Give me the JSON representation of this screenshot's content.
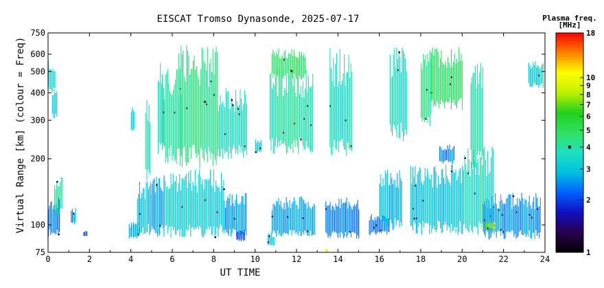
{
  "chart_data": {
    "type": "heatmap",
    "title": "EISCAT Tromso Dynasonde, 2025-07-17",
    "xlabel": "UT TIME",
    "ylabel": "Virtual Range [km] (colour = Freq)",
    "xlim": [
      0,
      24
    ],
    "ylim": [
      75,
      750
    ],
    "y_scale": "log",
    "x_ticks": [
      0,
      2,
      4,
      6,
      8,
      10,
      12,
      14,
      16,
      18,
      20,
      22,
      24
    ],
    "y_ticks": [
      75,
      100,
      200,
      300,
      400,
      500,
      600,
      750
    ],
    "grid": false,
    "colorbar": {
      "title_line1": "Plasma freq.",
      "title_line2": "[MHz]",
      "scale": "log",
      "range": [
        1,
        18
      ],
      "ticks": [
        1,
        2,
        3,
        4,
        5,
        6,
        7,
        8,
        9,
        10,
        18
      ],
      "marker_value": 4,
      "colors": [
        "#000000",
        "#2a0050",
        "#1010c0",
        "#0060ff",
        "#00c0e0",
        "#20e0c0",
        "#30e060",
        "#20d020",
        "#c0f000",
        "#ffff00",
        "#ff8000",
        "#ff0000"
      ]
    },
    "traces": [
      {
        "x0": 0.0,
        "x1": 0.35,
        "ylo": 400,
        "yhi": 560,
        "f": 3.4
      },
      {
        "x0": 0.2,
        "x1": 0.45,
        "ylo": 300,
        "yhi": 440,
        "f": 3.2
      },
      {
        "x0": 0.0,
        "x1": 0.55,
        "ylo": 88,
        "yhi": 135,
        "f": 2.4
      },
      {
        "x0": 0.3,
        "x1": 0.7,
        "ylo": 110,
        "yhi": 165,
        "f": 4.0
      },
      {
        "x0": 1.1,
        "x1": 1.35,
        "ylo": 100,
        "yhi": 120,
        "f": 2.6
      },
      {
        "x0": 1.7,
        "x1": 1.9,
        "ylo": 88,
        "yhi": 95,
        "f": 2.0
      },
      {
        "x0": 3.9,
        "x1": 4.4,
        "ylo": 86,
        "yhi": 104,
        "f": 2.8
      },
      {
        "x0": 4.3,
        "x1": 5.0,
        "ylo": 90,
        "yhi": 160,
        "f": 3.0
      },
      {
        "x0": 4.0,
        "x1": 4.2,
        "ylo": 260,
        "yhi": 360,
        "f": 3.0
      },
      {
        "x0": 4.7,
        "x1": 4.95,
        "ylo": 150,
        "yhi": 380,
        "f": 3.6
      },
      {
        "x0": 5.0,
        "x1": 5.6,
        "ylo": 88,
        "yhi": 170,
        "f": 2.6
      },
      {
        "x0": 5.3,
        "x1": 5.6,
        "ylo": 200,
        "yhi": 560,
        "f": 3.8
      },
      {
        "x0": 5.5,
        "x1": 6.5,
        "ylo": 190,
        "yhi": 520,
        "f": 4.2
      },
      {
        "x0": 5.6,
        "x1": 8.5,
        "ylo": 87,
        "yhi": 180,
        "f": 3.2
      },
      {
        "x0": 6.3,
        "x1": 8.2,
        "ylo": 180,
        "yhi": 660,
        "f": 4.3
      },
      {
        "x0": 8.2,
        "x1": 9.6,
        "ylo": 200,
        "yhi": 420,
        "f": 3.6
      },
      {
        "x0": 8.5,
        "x1": 9.6,
        "ylo": 88,
        "yhi": 140,
        "f": 2.6
      },
      {
        "x0": 9.1,
        "x1": 9.5,
        "ylo": 84,
        "yhi": 95,
        "f": 2.0
      },
      {
        "x0": 10.0,
        "x1": 10.3,
        "ylo": 210,
        "yhi": 250,
        "f": 3.0
      },
      {
        "x0": 10.6,
        "x1": 10.95,
        "ylo": 80,
        "yhi": 92,
        "f": 3.0
      },
      {
        "x0": 10.8,
        "x1": 12.9,
        "ylo": 88,
        "yhi": 135,
        "f": 2.6
      },
      {
        "x0": 10.7,
        "x1": 12.8,
        "ylo": 210,
        "yhi": 520,
        "f": 4.0
      },
      {
        "x0": 10.8,
        "x1": 12.4,
        "ylo": 460,
        "yhi": 640,
        "f": 4.8
      },
      {
        "x0": 13.4,
        "x1": 15.0,
        "ylo": 86,
        "yhi": 135,
        "f": 2.4
      },
      {
        "x0": 13.6,
        "x1": 14.7,
        "ylo": 200,
        "yhi": 640,
        "f": 3.6
      },
      {
        "x0": 15.5,
        "x1": 16.5,
        "ylo": 90,
        "yhi": 112,
        "f": 2.4
      },
      {
        "x0": 16.0,
        "x1": 17.1,
        "ylo": 95,
        "yhi": 180,
        "f": 2.8
      },
      {
        "x0": 16.5,
        "x1": 17.3,
        "ylo": 240,
        "yhi": 660,
        "f": 3.6
      },
      {
        "x0": 17.5,
        "x1": 20.0,
        "ylo": 90,
        "yhi": 190,
        "f": 3.0
      },
      {
        "x0": 18.0,
        "x1": 18.5,
        "ylo": 280,
        "yhi": 650,
        "f": 4.2
      },
      {
        "x0": 18.5,
        "x1": 20.0,
        "ylo": 330,
        "yhi": 650,
        "f": 4.8
      },
      {
        "x0": 18.9,
        "x1": 19.6,
        "ylo": 190,
        "yhi": 235,
        "f": 2.4
      },
      {
        "x0": 20.0,
        "x1": 21.5,
        "ylo": 90,
        "yhi": 230,
        "f": 3.6
      },
      {
        "x0": 20.4,
        "x1": 21.0,
        "ylo": 180,
        "yhi": 560,
        "f": 3.8
      },
      {
        "x0": 21.0,
        "x1": 23.8,
        "ylo": 86,
        "yhi": 140,
        "f": 2.6
      },
      {
        "x0": 23.2,
        "x1": 23.9,
        "ylo": 420,
        "yhi": 560,
        "f": 3.2
      },
      {
        "x0": 13.4,
        "x1": 13.5,
        "ylo": 75,
        "yhi": 78,
        "f": 9.0
      },
      {
        "x0": 21.1,
        "x1": 21.6,
        "ylo": 95,
        "yhi": 104,
        "f": 7.5
      }
    ]
  }
}
